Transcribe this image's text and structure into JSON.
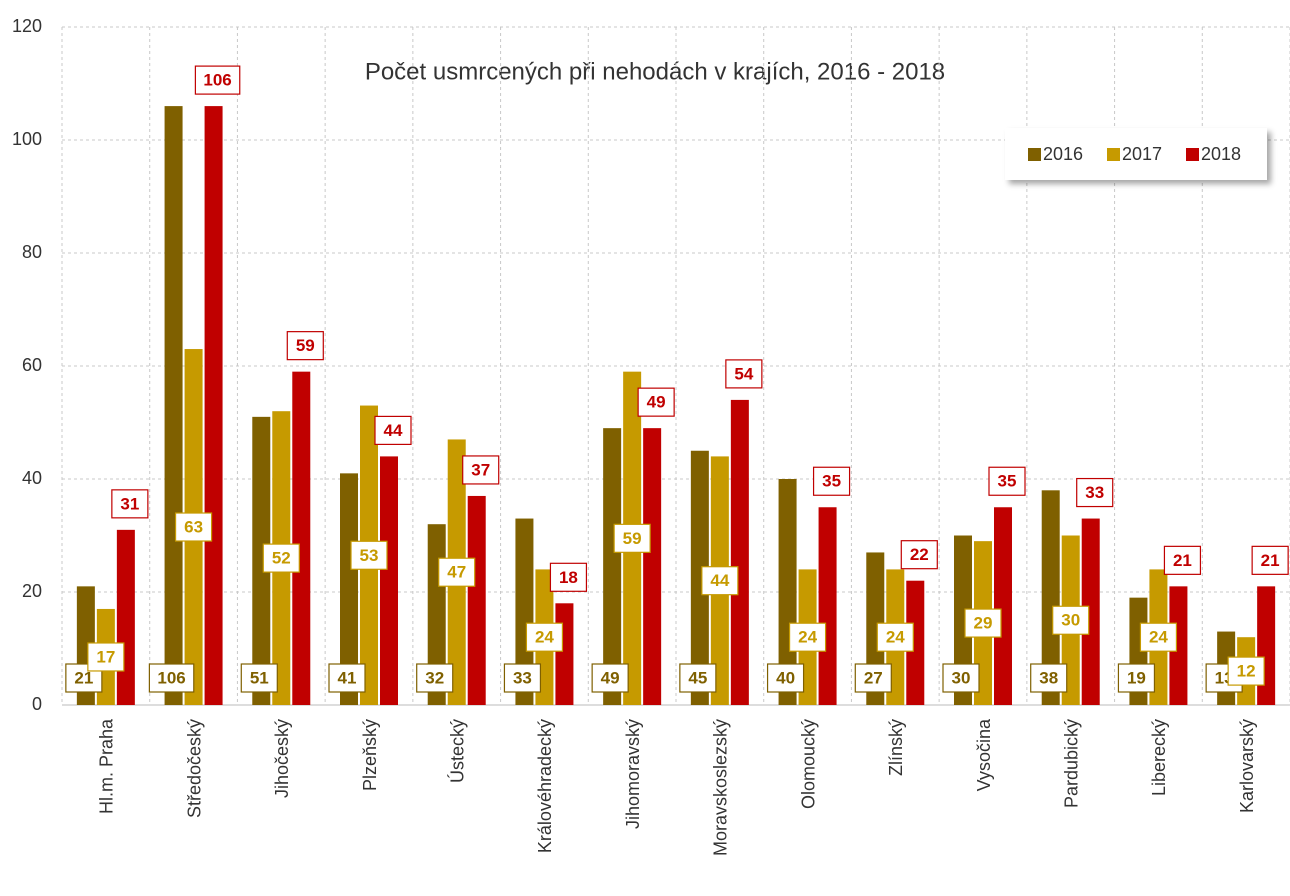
{
  "chart_data": {
    "type": "bar",
    "title": "Počet usmrcených při nehodách v krajích, 2016 - 2018",
    "categories": [
      "Hl.m. Praha",
      "Středočeský",
      "Jihočeský",
      "Plzeňský",
      "Ústecký",
      "Královéhradecký",
      "Jihomoravský",
      "Moravskoslezský",
      "Olomoucký",
      "Zlínský",
      "Vysočina",
      "Pardubický",
      "Liberecký",
      "Karlovarský"
    ],
    "series": [
      {
        "name": "2016",
        "color": "#7f6000",
        "values": [
          21,
          106,
          51,
          41,
          32,
          33,
          49,
          45,
          40,
          27,
          30,
          38,
          19,
          13
        ]
      },
      {
        "name": "2017",
        "color": "#c69a00",
        "values": [
          17,
          63,
          52,
          53,
          47,
          24,
          59,
          44,
          24,
          24,
          29,
          30,
          24,
          12
        ]
      },
      {
        "name": "2018",
        "color": "#c00000",
        "values": [
          31,
          106,
          59,
          44,
          37,
          18,
          49,
          54,
          35,
          22,
          35,
          33,
          21,
          21
        ]
      }
    ],
    "ylim": [
      0,
      120
    ],
    "yticks": [
      0,
      20,
      40,
      60,
      80,
      100,
      120
    ],
    "grid": true,
    "legend": "upper right"
  }
}
